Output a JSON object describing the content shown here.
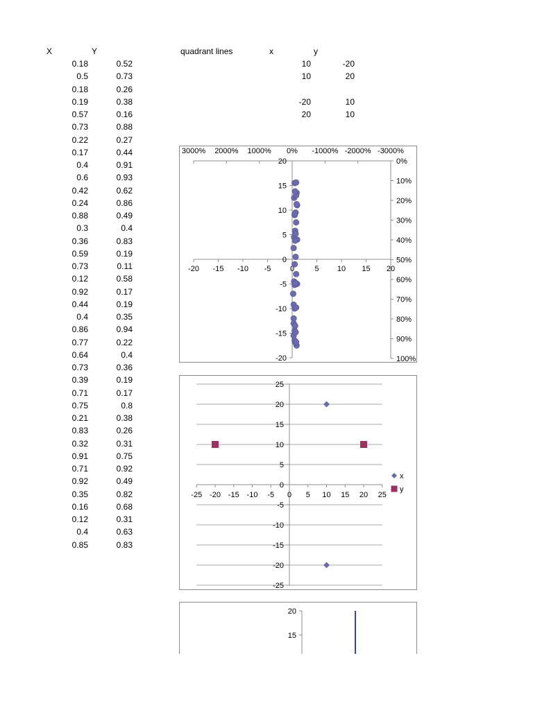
{
  "sheet": {
    "header_x": "X",
    "header_y": "Y",
    "rows": [
      [
        "0.18",
        "0.52"
      ],
      [
        "0.5",
        "0.73"
      ],
      [
        "0.18",
        "0.26"
      ],
      [
        "0.19",
        "0.38"
      ],
      [
        "0.57",
        "0.16"
      ],
      [
        "0.73",
        "0.88"
      ],
      [
        "0.22",
        "0.27"
      ],
      [
        "0.17",
        "0.44"
      ],
      [
        "0.4",
        "0.91"
      ],
      [
        "0.6",
        "0.93"
      ],
      [
        "0.42",
        "0.62"
      ],
      [
        "0.24",
        "0.86"
      ],
      [
        "0.88",
        "0.49"
      ],
      [
        "0.3",
        "0.4"
      ],
      [
        "0.36",
        "0.83"
      ],
      [
        "0.59",
        "0.19"
      ],
      [
        "0.73",
        "0.11"
      ],
      [
        "0.12",
        "0.58"
      ],
      [
        "0.92",
        "0.17"
      ],
      [
        "0.44",
        "0.19"
      ],
      [
        "0.4",
        "0.35"
      ],
      [
        "0.86",
        "0.94"
      ],
      [
        "0.77",
        "0.22"
      ],
      [
        "0.64",
        "0.4"
      ],
      [
        "0.73",
        "0.36"
      ],
      [
        "0.39",
        "0.19"
      ],
      [
        "0.71",
        "0.17"
      ],
      [
        "0.75",
        "0.8"
      ],
      [
        "0.21",
        "0.38"
      ],
      [
        "0.83",
        "0.26"
      ],
      [
        "0.32",
        "0.31"
      ],
      [
        "0.91",
        "0.75"
      ],
      [
        "0.71",
        "0.92"
      ],
      [
        "0.92",
        "0.49"
      ],
      [
        "0.35",
        "0.82"
      ],
      [
        "0.16",
        "0.68"
      ],
      [
        "0.12",
        "0.31"
      ],
      [
        "0.4",
        "0.63"
      ],
      [
        "0.85",
        "0.83"
      ]
    ]
  },
  "quadrant": {
    "label": "quadrant lines",
    "header_x": "x",
    "header_y": "y",
    "rows": [
      [
        "10",
        "-20"
      ],
      [
        "10",
        "20"
      ],
      [
        "",
        ""
      ],
      [
        "-20",
        "10"
      ],
      [
        "20",
        "10"
      ]
    ]
  },
  "chart_data": [
    {
      "type": "scatter",
      "title": "",
      "xlim": [
        -20,
        20
      ],
      "ylim": [
        -20,
        20
      ],
      "xticks": [
        "-20",
        "-15",
        "-10",
        "-5",
        "0",
        "5",
        "10",
        "15",
        "20"
      ],
      "yticks": [
        "-20",
        "-15",
        "-10",
        "-5",
        "0",
        "5",
        "10",
        "15",
        "20"
      ],
      "top_ticks": [
        "3000%",
        "2000%",
        "1000%",
        "0%",
        "-1000%",
        "-2000%",
        "-3000%"
      ],
      "right_ticks": [
        "0%",
        "10%",
        "20%",
        "30%",
        "40%",
        "50%",
        "60%",
        "70%",
        "80%",
        "90%",
        "100%"
      ],
      "marker_color": "#6b6bb0",
      "points_x": [
        0.5,
        0.9,
        0.4,
        1.0,
        0.7,
        0.5,
        0.8,
        0.6,
        0.4,
        1.0,
        0.3,
        0.7,
        0.5,
        0.8,
        0.4,
        1.0,
        0.2,
        0.3,
        0.5,
        0.3,
        0.3,
        0.5,
        0.3,
        0.5,
        0.9,
        0.7,
        0.6,
        0.8,
        0.5,
        0.7,
        0.8,
        0.6,
        0.7,
        0.5,
        0.8,
        0.7,
        0.8,
        0.6,
        0.9
      ],
      "points_y": [
        15.5,
        13.5,
        12.5,
        11,
        9.5,
        9,
        7.5,
        5.8,
        4.5,
        4,
        2.3,
        0.5,
        -1,
        -3,
        -4.5,
        -5,
        -7,
        -9.2,
        -10,
        -12,
        -13,
        -14.5,
        -15.5,
        -16.5,
        -17.5,
        -17,
        -13.5,
        -9.8,
        -5.2,
        5.2,
        13,
        3.8,
        -4.8,
        9.2,
        15.6,
        -14.8,
        -16.8,
        13.8,
        11.2
      ]
    },
    {
      "type": "scatter",
      "title": "",
      "xlim": [
        -25,
        25
      ],
      "ylim": [
        -25,
        25
      ],
      "xticks": [
        "-25",
        "-20",
        "-15",
        "-10",
        "-5",
        "0",
        "5",
        "10",
        "15",
        "20",
        "25"
      ],
      "yticks": [
        "-25",
        "-20",
        "-15",
        "-10",
        "-5",
        "0",
        "5",
        "10",
        "15",
        "20",
        "25"
      ],
      "series": [
        {
          "name": "x",
          "color": "#6b6bb0",
          "marker": "diamond",
          "points": [
            [
              10,
              -20
            ],
            [
              10,
              20
            ]
          ]
        },
        {
          "name": "y",
          "color": "#a0305e",
          "marker": "square",
          "points": [
            [
              -20,
              10
            ],
            [
              20,
              10
            ]
          ]
        }
      ],
      "legend": "right"
    },
    {
      "type": "line",
      "title": "",
      "visible_yticks": [
        "20",
        "15"
      ],
      "line_color": "#3f3fa0"
    }
  ]
}
